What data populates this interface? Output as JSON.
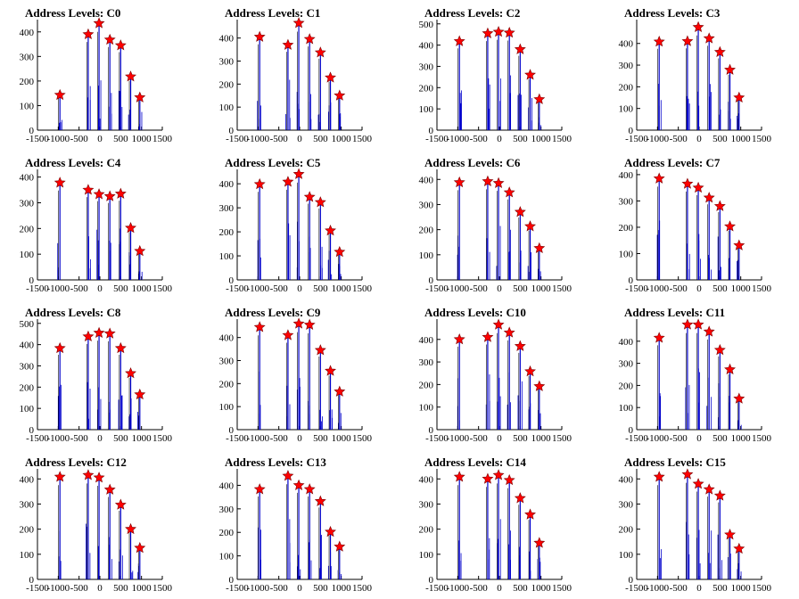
{
  "figure": {
    "background": "#ffffff",
    "spike_color": "#0000cc",
    "marker_color": "#ff0000",
    "marker_stroke": "#7a0000"
  },
  "chart_data": [
    {
      "type": "line",
      "title": "Address Levels: C0",
      "xlim": [
        -1500,
        1500
      ],
      "ylim": [
        0,
        450
      ],
      "xticks": [
        -1500,
        -1000,
        -500,
        0,
        500,
        1000,
        1500
      ],
      "yticks": [
        0,
        100,
        200,
        300,
        400
      ],
      "grid": false,
      "peaks": [
        {
          "x": -960,
          "y": 143
        },
        {
          "x": -280,
          "y": 390
        },
        {
          "x": -20,
          "y": 435
        },
        {
          "x": 240,
          "y": 368
        },
        {
          "x": 500,
          "y": 345
        },
        {
          "x": 740,
          "y": 218
        },
        {
          "x": 960,
          "y": 133
        }
      ]
    },
    {
      "type": "line",
      "title": "Address Levels: C1",
      "xlim": [
        -1500,
        1500
      ],
      "ylim": [
        0,
        480
      ],
      "xticks": [
        -1500,
        -1000,
        -500,
        0,
        500,
        1000,
        1500
      ],
      "yticks": [
        0,
        100,
        200,
        300,
        400
      ],
      "grid": false,
      "peaks": [
        {
          "x": -960,
          "y": 405
        },
        {
          "x": -280,
          "y": 370
        },
        {
          "x": -20,
          "y": 465
        },
        {
          "x": 240,
          "y": 395
        },
        {
          "x": 500,
          "y": 337
        },
        {
          "x": 740,
          "y": 228
        },
        {
          "x": 960,
          "y": 150
        }
      ]
    },
    {
      "type": "line",
      "title": "Address Levels: C2",
      "xlim": [
        -1500,
        1500
      ],
      "ylim": [
        0,
        520
      ],
      "xticks": [
        -1500,
        -1000,
        -500,
        0,
        500,
        1000,
        1500
      ],
      "yticks": [
        0,
        100,
        200,
        300,
        400,
        500
      ],
      "grid": false,
      "peaks": [
        {
          "x": -960,
          "y": 418
        },
        {
          "x": -280,
          "y": 455
        },
        {
          "x": -20,
          "y": 462
        },
        {
          "x": 240,
          "y": 458
        },
        {
          "x": 500,
          "y": 380
        },
        {
          "x": 740,
          "y": 260
        },
        {
          "x": 960,
          "y": 145
        }
      ]
    },
    {
      "type": "line",
      "title": "Address Levels: C3",
      "xlim": [
        -1500,
        1500
      ],
      "ylim": [
        0,
        510
      ],
      "xticks": [
        -1500,
        -1000,
        -500,
        0,
        500,
        1000,
        1500
      ],
      "yticks": [
        0,
        100,
        200,
        300,
        400
      ],
      "grid": false,
      "peaks": [
        {
          "x": -960,
          "y": 408
        },
        {
          "x": -280,
          "y": 410
        },
        {
          "x": -20,
          "y": 475
        },
        {
          "x": 240,
          "y": 423
        },
        {
          "x": 500,
          "y": 360
        },
        {
          "x": 740,
          "y": 278
        },
        {
          "x": 960,
          "y": 150
        }
      ]
    },
    {
      "type": "line",
      "title": "Address Levels: C4",
      "xlim": [
        -1500,
        1500
      ],
      "ylim": [
        0,
        430
      ],
      "xticks": [
        -1500,
        -1000,
        -500,
        0,
        500,
        1000,
        1500
      ],
      "yticks": [
        0,
        100,
        200,
        300,
        400
      ],
      "grid": false,
      "peaks": [
        {
          "x": -960,
          "y": 378
        },
        {
          "x": -280,
          "y": 350
        },
        {
          "x": -20,
          "y": 333
        },
        {
          "x": 240,
          "y": 325
        },
        {
          "x": 500,
          "y": 335
        },
        {
          "x": 740,
          "y": 202
        },
        {
          "x": 960,
          "y": 112
        }
      ]
    },
    {
      "type": "line",
      "title": "Address Levels: C5",
      "xlim": [
        -1500,
        1500
      ],
      "ylim": [
        0,
        460
      ],
      "xticks": [
        -1500,
        -1000,
        -500,
        0,
        500,
        1000,
        1500
      ],
      "yticks": [
        0,
        100,
        200,
        300,
        400
      ],
      "grid": false,
      "peaks": [
        {
          "x": -960,
          "y": 398
        },
        {
          "x": -280,
          "y": 408
        },
        {
          "x": -20,
          "y": 440
        },
        {
          "x": 240,
          "y": 345
        },
        {
          "x": 500,
          "y": 323
        },
        {
          "x": 740,
          "y": 205
        },
        {
          "x": 960,
          "y": 116
        }
      ]
    },
    {
      "type": "line",
      "title": "Address Levels: C6",
      "xlim": [
        -1500,
        1500
      ],
      "ylim": [
        0,
        440
      ],
      "xticks": [
        -1500,
        -1000,
        -500,
        0,
        500,
        1000,
        1500
      ],
      "yticks": [
        0,
        100,
        200,
        300,
        400
      ],
      "grid": false,
      "peaks": [
        {
          "x": -960,
          "y": 388
        },
        {
          "x": -280,
          "y": 392
        },
        {
          "x": -20,
          "y": 385
        },
        {
          "x": 240,
          "y": 348
        },
        {
          "x": 500,
          "y": 270
        },
        {
          "x": 740,
          "y": 213
        },
        {
          "x": 960,
          "y": 126
        }
      ]
    },
    {
      "type": "line",
      "title": "Address Levels: C7",
      "xlim": [
        -1500,
        1500
      ],
      "ylim": [
        0,
        420
      ],
      "xticks": [
        -1500,
        -1000,
        -500,
        0,
        500,
        1000,
        1500
      ],
      "yticks": [
        0,
        100,
        200,
        300,
        400
      ],
      "grid": false,
      "peaks": [
        {
          "x": -960,
          "y": 385
        },
        {
          "x": -280,
          "y": 365
        },
        {
          "x": -20,
          "y": 350
        },
        {
          "x": 240,
          "y": 312
        },
        {
          "x": 500,
          "y": 280
        },
        {
          "x": 740,
          "y": 203
        },
        {
          "x": 960,
          "y": 131
        }
      ]
    },
    {
      "type": "line",
      "title": "Address Levels: C8",
      "xlim": [
        -1500,
        1500
      ],
      "ylim": [
        0,
        520
      ],
      "xticks": [
        -1500,
        -1000,
        -500,
        0,
        500,
        1000,
        1500
      ],
      "yticks": [
        0,
        100,
        200,
        300,
        400,
        500
      ],
      "grid": false,
      "peaks": [
        {
          "x": -960,
          "y": 383
        },
        {
          "x": -280,
          "y": 438
        },
        {
          "x": -20,
          "y": 455
        },
        {
          "x": 240,
          "y": 452
        },
        {
          "x": 500,
          "y": 383
        },
        {
          "x": 740,
          "y": 265
        },
        {
          "x": 960,
          "y": 165
        }
      ]
    },
    {
      "type": "line",
      "title": "Address Levels: C9",
      "xlim": [
        -1500,
        1500
      ],
      "ylim": [
        0,
        480
      ],
      "xticks": [
        -1500,
        -1000,
        -500,
        0,
        500,
        1000,
        1500
      ],
      "yticks": [
        0,
        100,
        200,
        300,
        400
      ],
      "grid": false,
      "peaks": [
        {
          "x": -960,
          "y": 445
        },
        {
          "x": -280,
          "y": 410
        },
        {
          "x": -20,
          "y": 460
        },
        {
          "x": 240,
          "y": 455
        },
        {
          "x": 500,
          "y": 345
        },
        {
          "x": 740,
          "y": 255
        },
        {
          "x": 960,
          "y": 165
        }
      ]
    },
    {
      "type": "line",
      "title": "Address Levels: C10",
      "xlim": [
        -1500,
        1500
      ],
      "ylim": [
        0,
        490
      ],
      "xticks": [
        -1500,
        -1000,
        -500,
        0,
        500,
        1000,
        1500
      ],
      "yticks": [
        0,
        100,
        200,
        300,
        400
      ],
      "grid": false,
      "peaks": [
        {
          "x": -960,
          "y": 400
        },
        {
          "x": -280,
          "y": 410
        },
        {
          "x": -20,
          "y": 465
        },
        {
          "x": 240,
          "y": 430
        },
        {
          "x": 500,
          "y": 370
        },
        {
          "x": 740,
          "y": 258
        },
        {
          "x": 960,
          "y": 192
        }
      ]
    },
    {
      "type": "line",
      "title": "Address Levels: C11",
      "xlim": [
        -1500,
        1500
      ],
      "ylim": [
        0,
        500
      ],
      "xticks": [
        -1500,
        -1000,
        -500,
        0,
        500,
        1000,
        1500
      ],
      "yticks": [
        0,
        100,
        200,
        300,
        400
      ],
      "grid": false,
      "peaks": [
        {
          "x": -960,
          "y": 415
        },
        {
          "x": -280,
          "y": 475
        },
        {
          "x": -20,
          "y": 475
        },
        {
          "x": 240,
          "y": 443
        },
        {
          "x": 500,
          "y": 360
        },
        {
          "x": 740,
          "y": 272
        },
        {
          "x": 960,
          "y": 140
        }
      ]
    },
    {
      "type": "line",
      "title": "Address Levels: C12",
      "xlim": [
        -1500,
        1500
      ],
      "ylim": [
        0,
        440
      ],
      "xticks": [
        -1500,
        -1000,
        -500,
        0,
        500,
        1000,
        1500
      ],
      "yticks": [
        0,
        100,
        200,
        300,
        400
      ],
      "grid": false,
      "peaks": [
        {
          "x": -960,
          "y": 408
        },
        {
          "x": -280,
          "y": 415
        },
        {
          "x": -20,
          "y": 405
        },
        {
          "x": 240,
          "y": 357
        },
        {
          "x": 500,
          "y": 297
        },
        {
          "x": 740,
          "y": 200
        },
        {
          "x": 960,
          "y": 125
        }
      ]
    },
    {
      "type": "line",
      "title": "Address Levels: C13",
      "xlim": [
        -1500,
        1500
      ],
      "ylim": [
        0,
        470
      ],
      "xticks": [
        -1500,
        -1000,
        -500,
        0,
        500,
        1000,
        1500
      ],
      "yticks": [
        0,
        100,
        200,
        300,
        400
      ],
      "grid": false,
      "peaks": [
        {
          "x": -960,
          "y": 383
        },
        {
          "x": -280,
          "y": 440
        },
        {
          "x": -20,
          "y": 400
        },
        {
          "x": 240,
          "y": 383
        },
        {
          "x": 500,
          "y": 332
        },
        {
          "x": 740,
          "y": 202
        },
        {
          "x": 960,
          "y": 139
        }
      ]
    },
    {
      "type": "line",
      "title": "Address Levels: C14",
      "xlim": [
        -1500,
        1500
      ],
      "ylim": [
        0,
        440
      ],
      "xticks": [
        -1500,
        -1000,
        -500,
        0,
        500,
        1000,
        1500
      ],
      "yticks": [
        0,
        100,
        200,
        300,
        400
      ],
      "grid": false,
      "peaks": [
        {
          "x": -960,
          "y": 408
        },
        {
          "x": -280,
          "y": 400
        },
        {
          "x": -20,
          "y": 415
        },
        {
          "x": 240,
          "y": 395
        },
        {
          "x": 500,
          "y": 323
        },
        {
          "x": 740,
          "y": 258
        },
        {
          "x": 960,
          "y": 145
        }
      ]
    },
    {
      "type": "line",
      "title": "Address Levels: C15",
      "xlim": [
        -1500,
        1500
      ],
      "ylim": [
        0,
        440
      ],
      "xticks": [
        -1500,
        -1000,
        -500,
        0,
        500,
        1000,
        1500
      ],
      "yticks": [
        0,
        100,
        200,
        300,
        400
      ],
      "grid": false,
      "peaks": [
        {
          "x": -960,
          "y": 408
        },
        {
          "x": -280,
          "y": 418
        },
        {
          "x": -20,
          "y": 380
        },
        {
          "x": 240,
          "y": 358
        },
        {
          "x": 500,
          "y": 333
        },
        {
          "x": 740,
          "y": 178
        },
        {
          "x": 960,
          "y": 122
        }
      ]
    }
  ]
}
